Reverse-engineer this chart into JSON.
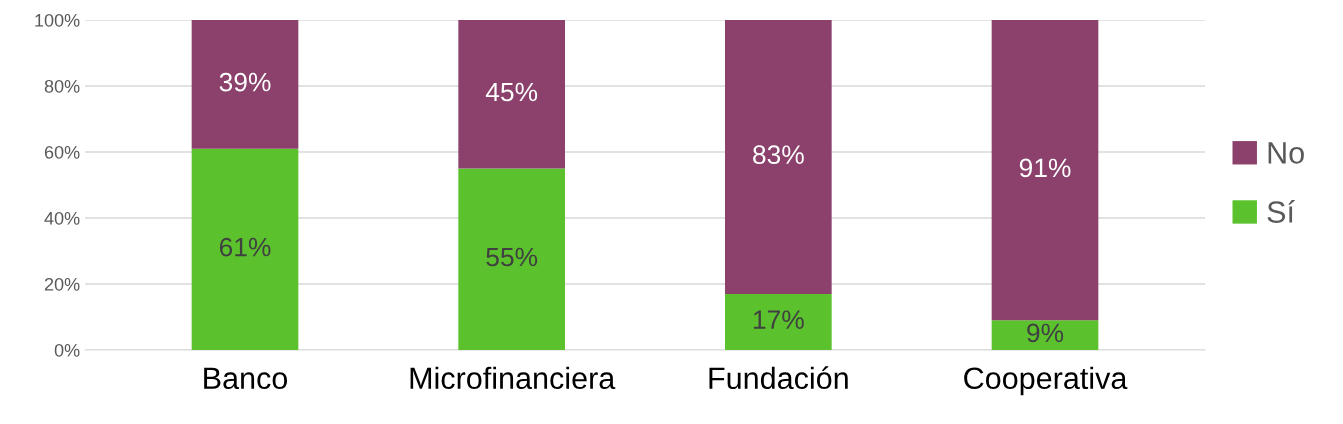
{
  "chart_data": {
    "type": "bar",
    "stacked": true,
    "categories": [
      "Banco",
      "Microfinanciera",
      "Fundación",
      "Cooperativa"
    ],
    "series": [
      {
        "name": "Sí",
        "color": "#5bc22e",
        "values": [
          61,
          55,
          17,
          9
        ],
        "value_labels": [
          "61%",
          "55%",
          "17%",
          "9%"
        ]
      },
      {
        "name": "No",
        "color": "#8b416b",
        "values": [
          39,
          45,
          83,
          91
        ],
        "value_labels": [
          "39%",
          "45%",
          "83%",
          "91%"
        ]
      }
    ],
    "ylim": [
      0,
      100
    ],
    "yticks": [
      {
        "value": 0,
        "label": "0%"
      },
      {
        "value": 20,
        "label": "20%"
      },
      {
        "value": 40,
        "label": "40%"
      },
      {
        "value": 60,
        "label": "60%"
      },
      {
        "value": 80,
        "label": "80%"
      },
      {
        "value": 100,
        "label": "100%"
      }
    ],
    "grid": "y",
    "legend": "right"
  }
}
